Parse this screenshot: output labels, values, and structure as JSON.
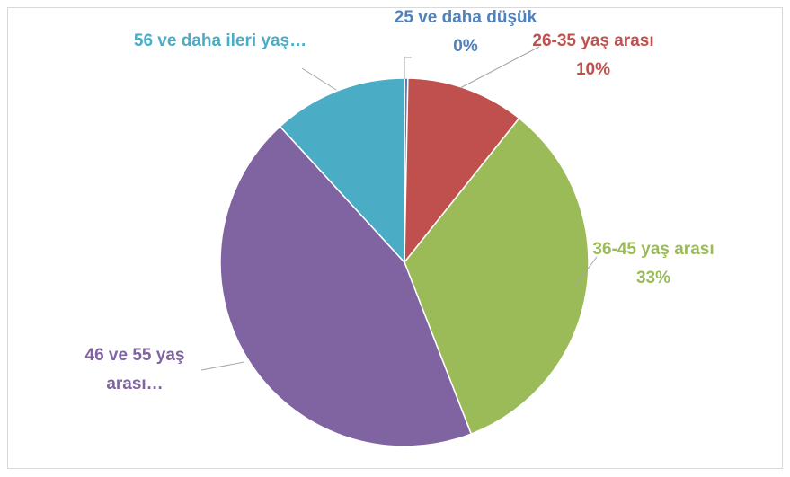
{
  "chart_data": {
    "type": "pie",
    "categories": [
      "25 ve daha düşük",
      "26-35 yaş arası",
      "36-45 yaş arası",
      "46 ve 55 yaş arası…",
      "56 ve daha ileri yaş…"
    ],
    "values": [
      0.3,
      10.4,
      33.4,
      44.1,
      11.8
    ],
    "value_labels": [
      "0%",
      "10%",
      "33%",
      null,
      null
    ],
    "colors": [
      "#4f81bd",
      "#c0504d",
      "#9bbb59",
      "#8064a2",
      "#4bacc6"
    ]
  }
}
